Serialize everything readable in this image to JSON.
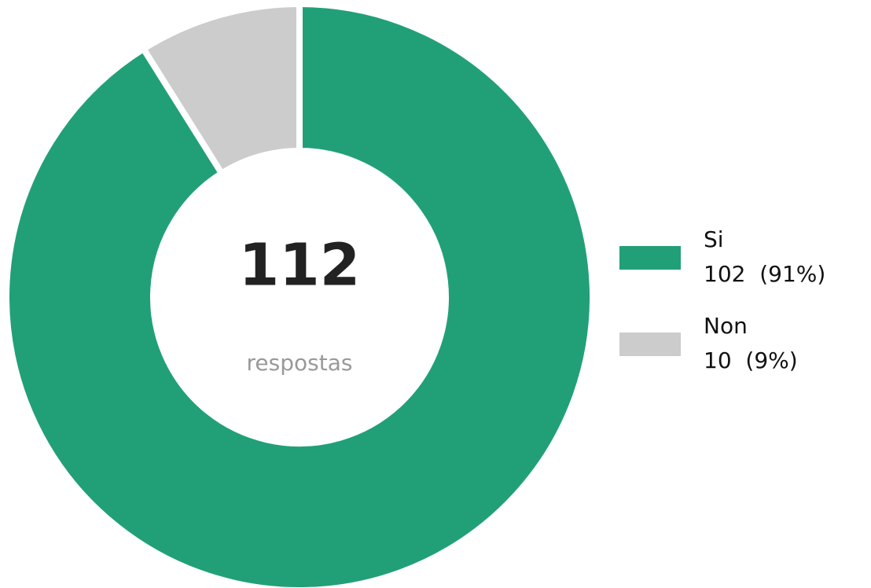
{
  "chart_data": {
    "type": "donut",
    "categories": [
      "Si",
      "Non"
    ],
    "values": [
      102,
      10
    ],
    "value_labels": [
      "102  (91%)",
      "10  (9%)"
    ],
    "colors": [
      "#21a078",
      "#cccccc"
    ],
    "center_value": 112,
    "center_label": "respostas",
    "legend": "right"
  }
}
